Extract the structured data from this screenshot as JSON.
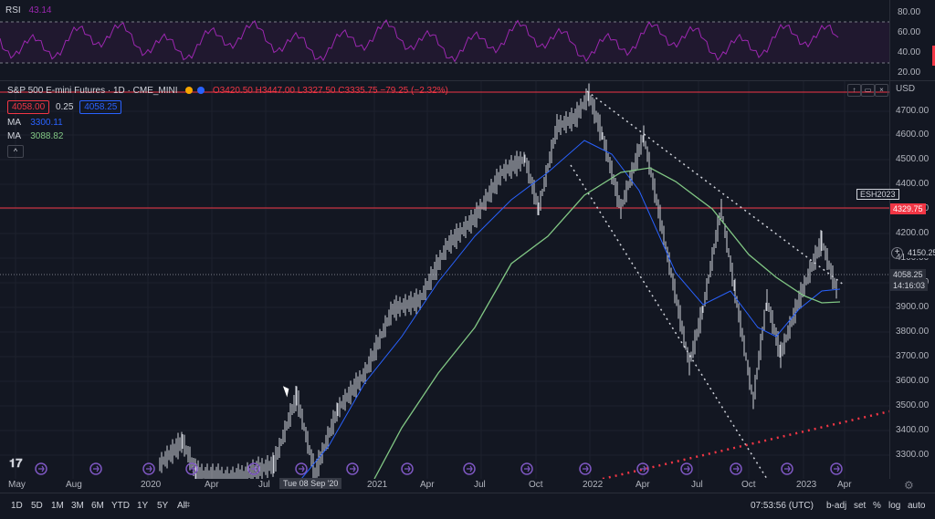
{
  "rsi": {
    "name": "RSI",
    "value": "43.14",
    "ticks": [
      "80.00",
      "60.00",
      "40.00",
      "20.00"
    ],
    "band_upper": 70,
    "band_lower": 30
  },
  "legend": {
    "symbol": "S&P 500 E-mini Futures · 1D · CME_MINI",
    "ohlc": "O3420.50 H3447.00 L3327.50 C3335.75 −79.25 (−2.32%)",
    "bid": "4058.00",
    "spread": "0.25",
    "ask": "4058.25",
    "ma1_label": "MA",
    "ma1_value": "3300.11",
    "ma2_label": "MA",
    "ma2_value": "3088.82",
    "collapse_glyph": "^"
  },
  "price_axis": {
    "currency": "USD",
    "ticks": [
      "4700.00",
      "4600.00",
      "4500.00",
      "4400.00",
      "4300.00",
      "4200.00",
      "4100.00",
      "4000.00",
      "3900.00",
      "3800.00",
      "3700.00",
      "3600.00",
      "3500.00",
      "3400.00",
      "3300.00"
    ],
    "tag_resistance": "4329.75",
    "tag_alert": "4150.25",
    "tag_symbol": "ESH2023",
    "tag_last": "4058.25",
    "tag_countdown": "14:16:03"
  },
  "time_axis": {
    "labels": [
      "May",
      "Aug",
      "2020",
      "Apr",
      "Jul",
      "2021",
      "Apr",
      "Jul",
      "Oct",
      "2022",
      "Apr",
      "Jul",
      "Oct",
      "2023",
      "Apr"
    ],
    "crosshair_label": "Tue 08 Sep '20"
  },
  "bottom_bar": {
    "ranges": [
      "1D",
      "5D",
      "1M",
      "3M",
      "6M",
      "YTD",
      "1Y",
      "5Y",
      "All"
    ],
    "clock": "07:53:56 (UTC)",
    "controls": [
      "b-adj",
      "set",
      "%",
      "log",
      "auto"
    ]
  },
  "colors": {
    "background": "#131722",
    "rsi_line": "#9c27b0",
    "ma_fast": "#2962ff",
    "ma_slow": "#81c784",
    "resistance": "#f23645",
    "bid_border": "#f23645",
    "ask_border": "#2962ff"
  },
  "icons": {
    "logo": "tradingview-logo-icon",
    "event": "dividend-arrow-icon",
    "alert": "plus-circle-icon"
  }
}
